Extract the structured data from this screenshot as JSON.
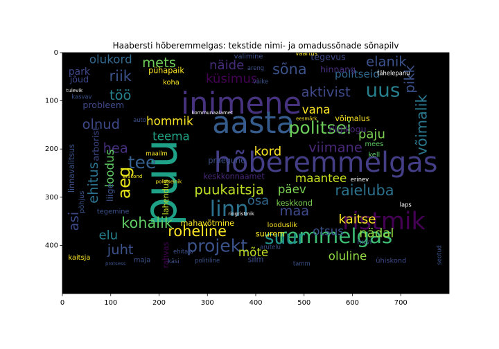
{
  "chart_data": {
    "type": "wordcloud",
    "title": "Haabersti hõberemmelgas: tekstide nimi- ja omadussõnade sõnapilv",
    "xlim": [
      0,
      800
    ],
    "ylim": [
      0,
      500
    ],
    "y_inverted": true,
    "x_ticks": [
      "0",
      "100",
      "200",
      "300",
      "400",
      "500",
      "600",
      "700"
    ],
    "y_ticks": [
      "0",
      "100",
      "200",
      "300",
      "400"
    ],
    "background": "#000000",
    "words": [
      {
        "text": "inimene",
        "x": 370,
        "y": 110,
        "size": 62,
        "color": "#46327e",
        "rot": 0
      },
      {
        "text": "puu",
        "x": 210,
        "y": 270,
        "size": 95,
        "color": "#1fa187",
        "rot": -90
      },
      {
        "text": "aasta",
        "x": 395,
        "y": 150,
        "size": 62,
        "color": "#365c8d",
        "rot": 0
      },
      {
        "text": "hõberemmelgas",
        "x": 545,
        "y": 232,
        "size": 57,
        "color": "#433e85",
        "rot": 0
      },
      {
        "text": "ristmik",
        "x": 665,
        "y": 352,
        "size": 50,
        "color": "#440154",
        "rot": 0
      },
      {
        "text": "remmelgas",
        "x": 565,
        "y": 383,
        "size": 42,
        "color": "#3dbc74",
        "rot": 0
      },
      {
        "text": "linn",
        "x": 345,
        "y": 327,
        "size": 44,
        "color": "#2c728e",
        "rot": 0
      },
      {
        "text": "politsei",
        "x": 533,
        "y": 158,
        "size": 36,
        "color": "#6ccd5a",
        "rot": 0
      },
      {
        "text": "uus",
        "x": 663,
        "y": 80,
        "size": 40,
        "color": "#277f8e",
        "rot": 0
      },
      {
        "text": "projekt",
        "x": 320,
        "y": 403,
        "size": 36,
        "color": "#3b528b",
        "rot": 0
      },
      {
        "text": "suur",
        "x": 460,
        "y": 386,
        "size": 38,
        "color": "#21918c",
        "rot": 0
      },
      {
        "text": "puukaitsja",
        "x": 345,
        "y": 286,
        "size": 28,
        "color": "#bddf26",
        "rot": 0
      },
      {
        "text": "raieluba",
        "x": 625,
        "y": 287,
        "size": 30,
        "color": "#2c728e",
        "rot": 0
      },
      {
        "text": "roheline",
        "x": 279,
        "y": 372,
        "size": 30,
        "color": "#fde725",
        "rot": 0
      },
      {
        "text": "kohalik",
        "x": 175,
        "y": 355,
        "size": 30,
        "color": "#5ec962",
        "rot": 0
      },
      {
        "text": "sõna",
        "x": 470,
        "y": 36,
        "size": 30,
        "color": "#3b528b",
        "rot": 0
      },
      {
        "text": "küsimus",
        "x": 350,
        "y": 55,
        "size": 26,
        "color": "#440154",
        "rot": 0
      },
      {
        "text": "näide",
        "x": 340,
        "y": 27,
        "size": 26,
        "color": "#472d7b",
        "rot": 0
      },
      {
        "text": "mets",
        "x": 200,
        "y": 22,
        "size": 28,
        "color": "#6ece58",
        "rot": 0
      },
      {
        "text": "olukord",
        "x": 100,
        "y": 16,
        "size": 24,
        "color": "#31688e",
        "rot": 0
      },
      {
        "text": "riik",
        "x": 120,
        "y": 50,
        "size": 30,
        "color": "#3b528b",
        "rot": 0
      },
      {
        "text": "töö",
        "x": 120,
        "y": 90,
        "size": 28,
        "color": "#26828e",
        "rot": 0
      },
      {
        "text": "olnud",
        "x": 80,
        "y": 150,
        "size": 28,
        "color": "#3e4989",
        "rot": 0
      },
      {
        "text": "hea",
        "x": 110,
        "y": 200,
        "size": 28,
        "color": "#472f7d",
        "rot": 0
      },
      {
        "text": "tee",
        "x": 165,
        "y": 230,
        "size": 36,
        "color": "#355f8d",
        "rot": 0
      },
      {
        "text": "aeg",
        "x": 130,
        "y": 270,
        "size": 36,
        "color": "#e5e419",
        "rot": -90
      },
      {
        "text": "teema",
        "x": 225,
        "y": 175,
        "size": 24,
        "color": "#20a486",
        "rot": 0
      },
      {
        "text": "hommik",
        "x": 222,
        "y": 144,
        "size": 24,
        "color": "#fde725",
        "rot": 0
      },
      {
        "text": "kord",
        "x": 425,
        "y": 206,
        "size": 26,
        "color": "#fde725",
        "rot": 0
      },
      {
        "text": "viimane",
        "x": 565,
        "y": 198,
        "size": 28,
        "color": "#482878",
        "rot": 0
      },
      {
        "text": "aktivist",
        "x": 545,
        "y": 83,
        "size": 28,
        "color": "#3e4989",
        "rot": 0
      },
      {
        "text": "vana",
        "x": 525,
        "y": 120,
        "size": 24,
        "color": "#fde725",
        "rot": 0
      },
      {
        "text": "elanik",
        "x": 670,
        "y": 20,
        "size": 28,
        "color": "#3b528b",
        "rot": 0
      },
      {
        "text": "politseid",
        "x": 610,
        "y": 45,
        "size": 22,
        "color": "#31688e",
        "rot": 0
      },
      {
        "text": "paju",
        "x": 640,
        "y": 170,
        "size": 26,
        "color": "#7ad151",
        "rot": 0
      },
      {
        "text": "võimalik",
        "x": 745,
        "y": 150,
        "size": 30,
        "color": "#2a788e",
        "rot": -90
      },
      {
        "text": "pikk",
        "x": 720,
        "y": 55,
        "size": 28,
        "color": "#3b528b",
        "rot": -90
      },
      {
        "text": "maa",
        "x": 480,
        "y": 330,
        "size": 28,
        "color": "#3e4989",
        "rot": 0
      },
      {
        "text": "otsus",
        "x": 550,
        "y": 372,
        "size": 24,
        "color": "#3b528b",
        "rot": 0
      },
      {
        "text": "kaitse",
        "x": 610,
        "y": 347,
        "size": 26,
        "color": "#fde725",
        "rot": 0
      },
      {
        "text": "nädal",
        "x": 650,
        "y": 376,
        "size": 26,
        "color": "#8fd744",
        "rot": 0
      },
      {
        "text": "oluline",
        "x": 590,
        "y": 424,
        "size": 24,
        "color": "#8fd744",
        "rot": 0
      },
      {
        "text": "mõte",
        "x": 395,
        "y": 416,
        "size": 24,
        "color": "#c2df23",
        "rot": 0
      },
      {
        "text": "juht",
        "x": 120,
        "y": 410,
        "size": 28,
        "color": "#3b528b",
        "rot": 0
      },
      {
        "text": "elu",
        "x": 95,
        "y": 380,
        "size": 26,
        "color": "#277f8e",
        "rot": 0
      },
      {
        "text": "ehitus",
        "x": 65,
        "y": 270,
        "size": 28,
        "color": "#2c728e",
        "rot": -90
      },
      {
        "text": "loodus",
        "x": 100,
        "y": 240,
        "size": 24,
        "color": "#5ec962",
        "rot": -90
      },
      {
        "text": "asi",
        "x": 25,
        "y": 350,
        "size": 28,
        "color": "#3e4989",
        "rot": -90
      },
      {
        "text": "päev",
        "x": 475,
        "y": 285,
        "size": 24,
        "color": "#7ad151",
        "rot": 0
      },
      {
        "text": "osa",
        "x": 405,
        "y": 308,
        "size": 26,
        "color": "#31688e",
        "rot": 0
      },
      {
        "text": "maantee",
        "x": 535,
        "y": 262,
        "size": 24,
        "color": "#c8e020",
        "rot": 0
      },
      {
        "text": "keskkonnaamet",
        "x": 355,
        "y": 258,
        "size": 16,
        "color": "#482878",
        "rot": 0
      },
      {
        "text": "keskkond",
        "x": 480,
        "y": 313,
        "size": 16,
        "color": "#7ad151",
        "rot": 0
      },
      {
        "text": "võimalus",
        "x": 600,
        "y": 138,
        "size": 16,
        "color": "#fde725",
        "rot": 0
      },
      {
        "text": "riigikogu",
        "x": 590,
        "y": 160,
        "size": 18,
        "color": "#482878",
        "rot": 0
      },
      {
        "text": "tegevus",
        "x": 550,
        "y": 10,
        "size": 18,
        "color": "#3e4989",
        "rot": 0
      },
      {
        "text": "hinnang",
        "x": 570,
        "y": 36,
        "size": 18,
        "color": "#472d7b",
        "rot": 0
      },
      {
        "text": "probleem",
        "x": 85,
        "y": 110,
        "size": 18,
        "color": "#3e4989",
        "rot": 0
      },
      {
        "text": "park",
        "x": 35,
        "y": 40,
        "size": 20,
        "color": "#3e4989",
        "rot": 0
      },
      {
        "text": "jõud",
        "x": 35,
        "y": 57,
        "size": 18,
        "color": "#3e4989",
        "rot": 0
      },
      {
        "text": "pühapaik",
        "x": 215,
        "y": 38,
        "size": 16,
        "color": "#fde725",
        "rot": 0
      },
      {
        "text": "koha",
        "x": 225,
        "y": 62,
        "size": 14,
        "color": "#fde725",
        "rot": 0
      },
      {
        "text": "praegune",
        "x": 340,
        "y": 225,
        "size": 16,
        "color": "#3b528b",
        "rot": 0
      },
      {
        "text": "arborist",
        "x": 70,
        "y": 190,
        "size": 18,
        "color": "#3e4989",
        "rot": -90
      },
      {
        "text": "liige",
        "x": 100,
        "y": 290,
        "size": 18,
        "color": "#3b528b",
        "rot": -90
      },
      {
        "text": "linnavalitsus",
        "x": 20,
        "y": 240,
        "size": 16,
        "color": "#3b528b",
        "rot": -90
      },
      {
        "text": "põhjus",
        "x": 40,
        "y": 310,
        "size": 14,
        "color": "#3b528b",
        "rot": -90
      },
      {
        "text": "lahendus",
        "x": 215,
        "y": 300,
        "size": 16,
        "color": "#c2df23",
        "rot": -90
      },
      {
        "text": "rahvas",
        "x": 215,
        "y": 420,
        "size": 16,
        "color": "#440154",
        "rot": -90
      },
      {
        "text": "mahavõtmine",
        "x": 300,
        "y": 355,
        "size": 16,
        "color": "#fde725",
        "rot": 0
      },
      {
        "text": "suurem",
        "x": 430,
        "y": 377,
        "size": 16,
        "color": "#fde725",
        "rot": 0
      },
      {
        "text": "looduslik",
        "x": 455,
        "y": 358,
        "size": 14,
        "color": "#fde725",
        "rot": 0
      },
      {
        "text": "kaitsja",
        "x": 35,
        "y": 425,
        "size": 14,
        "color": "#fde725",
        "rot": 0
      },
      {
        "text": "maja",
        "x": 165,
        "y": 430,
        "size": 14,
        "color": "#3b528b",
        "rot": 0
      },
      {
        "text": "käsi",
        "x": 230,
        "y": 433,
        "size": 12,
        "color": "#3b528b",
        "rot": 0
      },
      {
        "text": "silm",
        "x": 400,
        "y": 430,
        "size": 16,
        "color": "#3b528b",
        "rot": 0
      },
      {
        "text": "ühiskond",
        "x": 680,
        "y": 432,
        "size": 14,
        "color": "#3e4989",
        "rot": 0
      },
      {
        "text": "tegemine",
        "x": 105,
        "y": 330,
        "size": 14,
        "color": "#3b528b",
        "rot": 0
      },
      {
        "text": "ehitaja",
        "x": 250,
        "y": 413,
        "size": 12,
        "color": "#3b528b",
        "rot": 0
      },
      {
        "text": "ringristmik",
        "x": 370,
        "y": 335,
        "size": 10,
        "color": "#ffffff",
        "rot": 0
      },
      {
        "text": "kommunaalamet",
        "x": 310,
        "y": 125,
        "size": 10,
        "color": "#ffffff",
        "rot": 0
      },
      {
        "text": "valimine",
        "x": 385,
        "y": 8,
        "size": 14,
        "color": "#3b528b",
        "rot": 0
      },
      {
        "text": "tähelepanu",
        "x": 685,
        "y": 43,
        "size": 12,
        "color": "#ffffff",
        "rot": 0
      },
      {
        "text": "väike",
        "x": 410,
        "y": 60,
        "size": 12,
        "color": "#3b528b",
        "rot": 0
      },
      {
        "text": "areng",
        "x": 400,
        "y": 32,
        "size": 12,
        "color": "#3b528b",
        "rot": 0
      },
      {
        "text": "kell",
        "x": 645,
        "y": 212,
        "size": 14,
        "color": "#5ec962",
        "rot": 0
      },
      {
        "text": "mees",
        "x": 645,
        "y": 190,
        "size": 14,
        "color": "#5ec962",
        "rot": 0
      },
      {
        "text": "laps",
        "x": 710,
        "y": 316,
        "size": 12,
        "color": "#ffffff",
        "rot": 0
      },
      {
        "text": "auto",
        "x": 160,
        "y": 140,
        "size": 12,
        "color": "#3b528b",
        "rot": 0
      },
      {
        "text": "maailm",
        "x": 195,
        "y": 210,
        "size": 12,
        "color": "#fde725",
        "rot": 0
      },
      {
        "text": "politiseinik",
        "x": 220,
        "y": 268,
        "size": 10,
        "color": "#fde725",
        "rot": 0
      },
      {
        "text": "erakond",
        "x": 145,
        "y": 257,
        "size": 10,
        "color": "#fde725",
        "rot": 0
      },
      {
        "text": "eesmärk",
        "x": 505,
        "y": 137,
        "size": 10,
        "color": "#fde725",
        "rot": 0
      },
      {
        "text": "protsess",
        "x": 110,
        "y": 438,
        "size": 10,
        "color": "#3b528b",
        "rot": 0
      },
      {
        "text": "politiline",
        "x": 300,
        "y": 432,
        "size": 12,
        "color": "#3b528b",
        "rot": 0
      },
      {
        "text": "kasvav",
        "x": 40,
        "y": 92,
        "size": 12,
        "color": "#3b528b",
        "rot": 0
      },
      {
        "text": "tulevik",
        "x": 25,
        "y": 79,
        "size": 10,
        "color": "#ffffff",
        "rot": 0
      },
      {
        "text": "huvi",
        "x": 625,
        "y": 393,
        "size": 14,
        "color": "#3b528b",
        "rot": 0
      },
      {
        "text": "erinev",
        "x": 615,
        "y": 264,
        "size": 12,
        "color": "#ffffff",
        "rot": 0
      },
      {
        "text": "väärtus",
        "x": 505,
        "y": 2,
        "size": 12,
        "color": "#fde725",
        "rot": 0
      },
      {
        "text": "arutelu",
        "x": 430,
        "y": 404,
        "size": 12,
        "color": "#3b528b",
        "rot": 0
      },
      {
        "text": "tamm",
        "x": 495,
        "y": 438,
        "size": 12,
        "color": "#3b528b",
        "rot": 0
      },
      {
        "text": "seotud",
        "x": 780,
        "y": 420,
        "size": 12,
        "color": "#3b528b",
        "rot": -90
      }
    ]
  }
}
